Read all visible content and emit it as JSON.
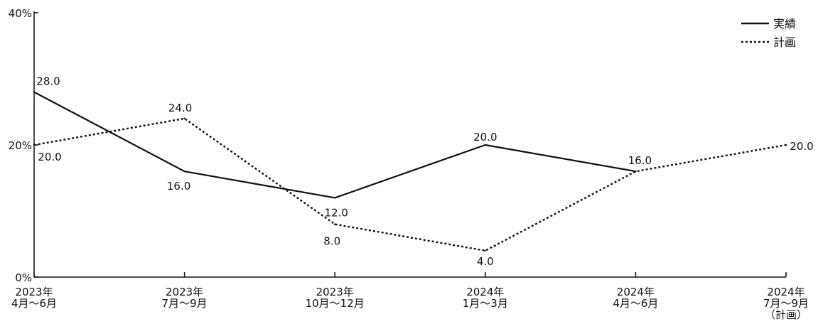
{
  "chart_data": {
    "type": "line",
    "categories": [
      [
        "2023年",
        "4月～6月"
      ],
      [
        "2023年",
        "7月～9月"
      ],
      [
        "2023年",
        "10月～12月"
      ],
      [
        "2024年",
        "1月～3月"
      ],
      [
        "2024年",
        "4月～6月"
      ],
      [
        "2024年",
        "7月～9月",
        "（計画）"
      ]
    ],
    "y_ticks": [
      "0%",
      "20%",
      "40%"
    ],
    "ylim": [
      0,
      40
    ],
    "grid": false,
    "legend_position": "top-right",
    "series": [
      {
        "name": "実績",
        "style": "solid",
        "values": [
          28.0,
          16.0,
          12.0,
          20.0,
          16.0,
          null
        ],
        "labels": [
          "28.0",
          "16.0",
          "12.0",
          "20.0",
          "",
          ""
        ]
      },
      {
        "name": "計画",
        "style": "dotted",
        "values": [
          20.0,
          24.0,
          8.0,
          4.0,
          16.0,
          20.0
        ],
        "labels": [
          "20.0",
          "24.0",
          "8.0",
          "4.0",
          "16.0",
          "20.0"
        ]
      }
    ]
  }
}
